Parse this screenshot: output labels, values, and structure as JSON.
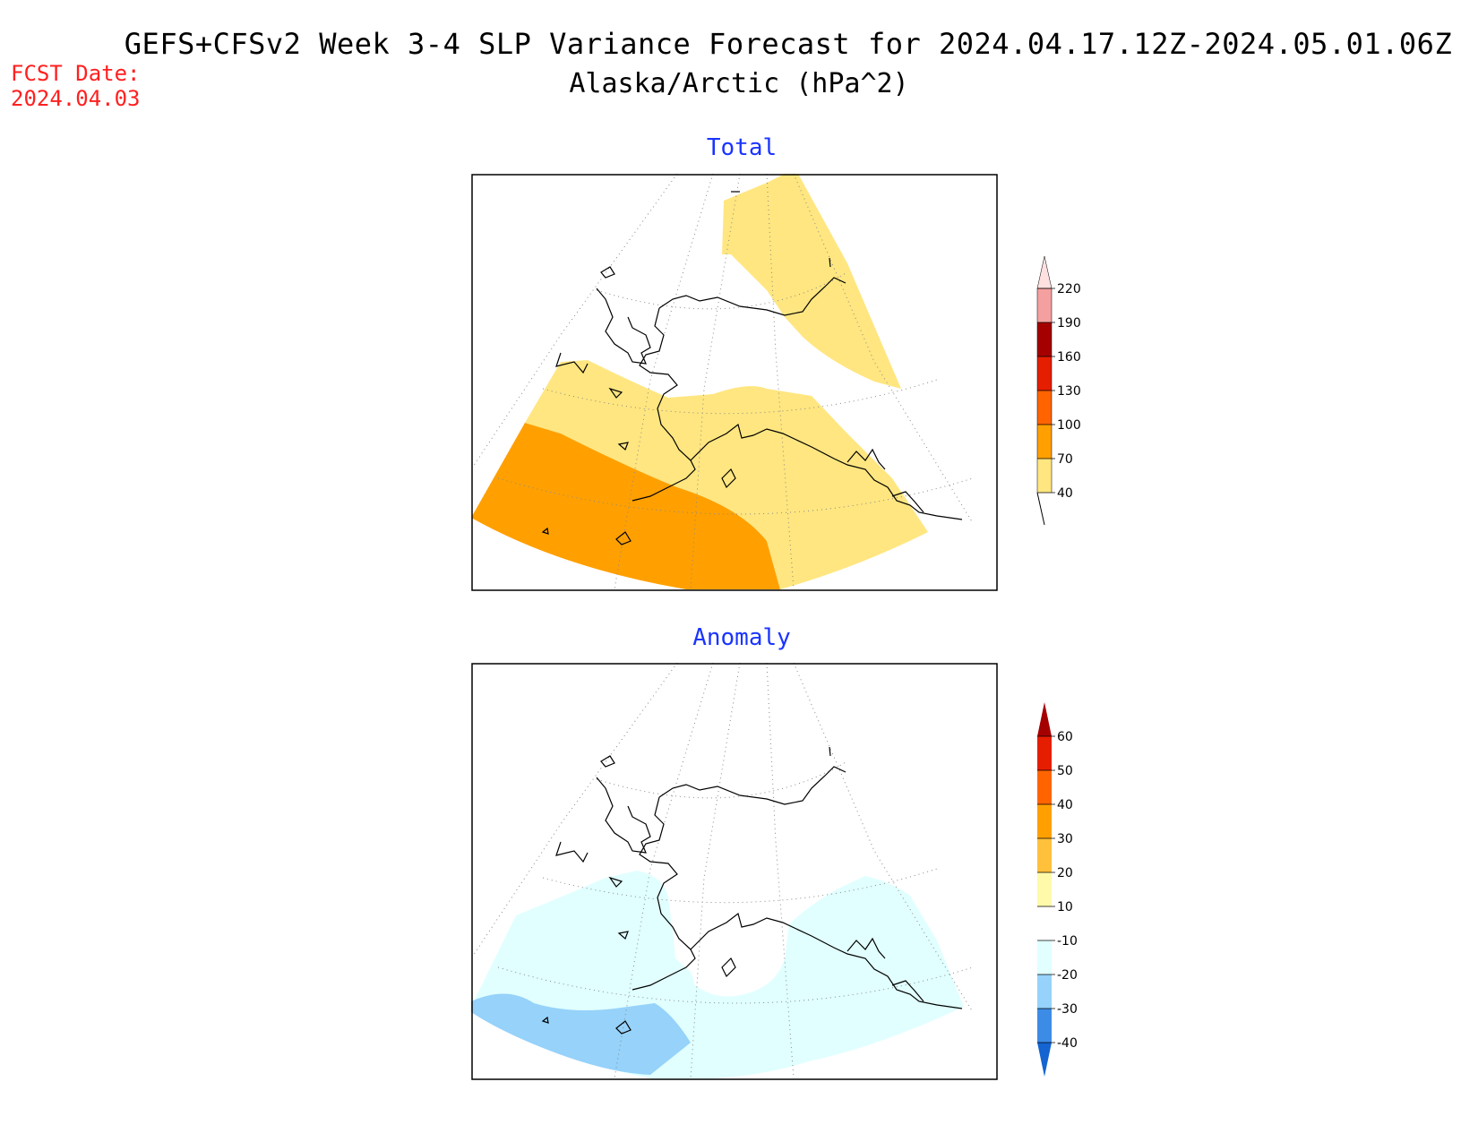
{
  "header": {
    "title": "GEFS+CFSv2 Week 3-4 SLP Variance Forecast for 2024.04.17.12Z-2024.05.01.06Z",
    "subtitle": "Alaska/Arctic (hPa^2)",
    "fcst_label": "FCST Date:",
    "fcst_date": "2024.04.03"
  },
  "panels": {
    "total": {
      "title": "Total",
      "colorbar": {
        "levels": [
          "40",
          "70",
          "100",
          "130",
          "160",
          "190",
          "220"
        ],
        "colors": [
          "#ffe680",
          "#ffa000",
          "#ff6400",
          "#e61e00",
          "#a50000",
          "#f5a0a0",
          "#ffe0e0"
        ]
      }
    },
    "anomaly": {
      "title": "Anomaly",
      "colorbar": {
        "levels": [
          "-40",
          "-30",
          "-20",
          "-10",
          "10",
          "20",
          "30",
          "40",
          "50",
          "60"
        ],
        "colors": [
          "#1464d2",
          "#3c8ce6",
          "#96d2fa",
          "#e1ffff",
          "#ffffff",
          "#fffaaa",
          "#ffc03c",
          "#ffa000",
          "#ff6400",
          "#e61e00",
          "#a50000"
        ]
      }
    }
  }
}
